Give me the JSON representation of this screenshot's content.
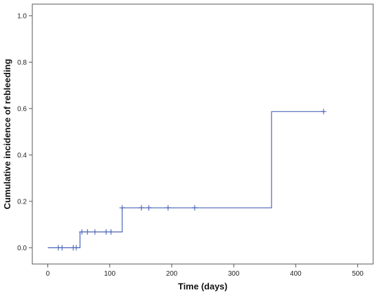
{
  "chart_data": {
    "type": "line",
    "subtype": "kaplan-meier-step",
    "title": "",
    "xlabel": "Time (days)",
    "ylabel": "Cumulative incidence of rebleeding",
    "xlim": [
      -25,
      525
    ],
    "ylim": [
      -0.07,
      1.05
    ],
    "xticks": [
      0,
      100,
      200,
      300,
      400,
      500
    ],
    "yticks": [
      0.0,
      0.2,
      0.4,
      0.6,
      0.8,
      1.0
    ],
    "xtick_labels": [
      "0",
      "100",
      "200",
      "300",
      "400",
      "500"
    ],
    "ytick_labels": [
      "0.0",
      "0.2",
      "0.4",
      "0.6",
      "0.8",
      "1.0"
    ],
    "grid": false,
    "legend": "none",
    "line_color": "#4a64b8",
    "series": [
      {
        "step_points": [
          {
            "x": 0,
            "y": 0.0
          },
          {
            "x": 52,
            "y": 0.0
          },
          {
            "x": 52,
            "y": 0.068
          },
          {
            "x": 120,
            "y": 0.068
          },
          {
            "x": 120,
            "y": 0.172
          },
          {
            "x": 361,
            "y": 0.172
          },
          {
            "x": 361,
            "y": 0.587
          },
          {
            "x": 445,
            "y": 0.587
          }
        ],
        "censored": [
          {
            "x": 17,
            "y": 0.0
          },
          {
            "x": 23,
            "y": 0.0
          },
          {
            "x": 41,
            "y": 0.0
          },
          {
            "x": 46,
            "y": 0.0
          },
          {
            "x": 55,
            "y": 0.068
          },
          {
            "x": 64,
            "y": 0.068
          },
          {
            "x": 76,
            "y": 0.068
          },
          {
            "x": 94,
            "y": 0.068
          },
          {
            "x": 102,
            "y": 0.068
          },
          {
            "x": 120,
            "y": 0.172
          },
          {
            "x": 151,
            "y": 0.172
          },
          {
            "x": 163,
            "y": 0.172
          },
          {
            "x": 194,
            "y": 0.172
          },
          {
            "x": 237,
            "y": 0.172
          },
          {
            "x": 445,
            "y": 0.587
          }
        ]
      }
    ]
  }
}
